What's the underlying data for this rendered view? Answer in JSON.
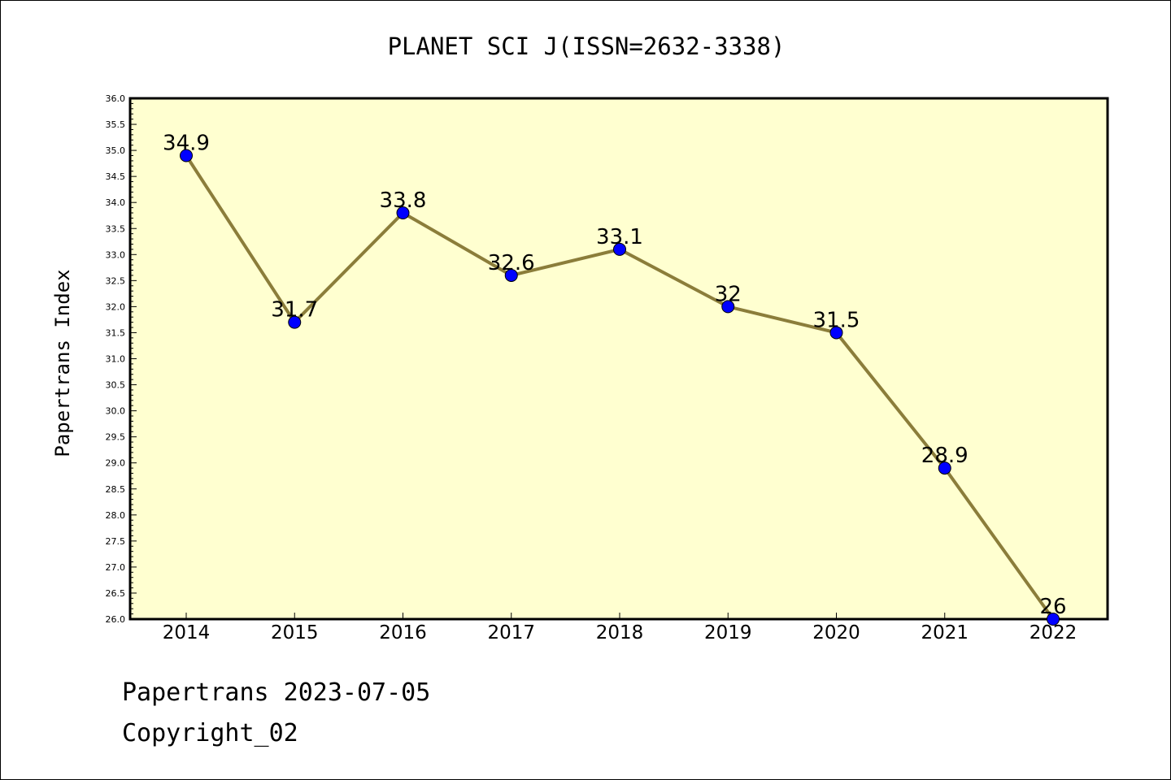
{
  "chart_data": {
    "type": "line",
    "title": "PLANET SCI J(ISSN=2632-3338)",
    "xlabel": "",
    "ylabel": "Papertrans Index",
    "categories": [
      "2014",
      "2015",
      "2016",
      "2017",
      "2018",
      "2019",
      "2020",
      "2021",
      "2022"
    ],
    "values": [
      34.9,
      31.7,
      33.8,
      32.6,
      33.1,
      32,
      31.5,
      28.9,
      26
    ],
    "data_labels": [
      "34.9",
      "31.7",
      "33.8",
      "32.6",
      "33.1",
      "32",
      "31.5",
      "28.9",
      "26"
    ],
    "ylim": [
      26.0,
      36.0
    ],
    "ytick_step": 0.5,
    "grid": false,
    "legend": "none",
    "colors": {
      "plot_background": "#ffffd0",
      "line": "#8b7d3a",
      "marker": "#0000ff"
    }
  },
  "footer": {
    "date_text": "Papertrans 2023-07-05",
    "copyright_text": "Copyright_02"
  }
}
